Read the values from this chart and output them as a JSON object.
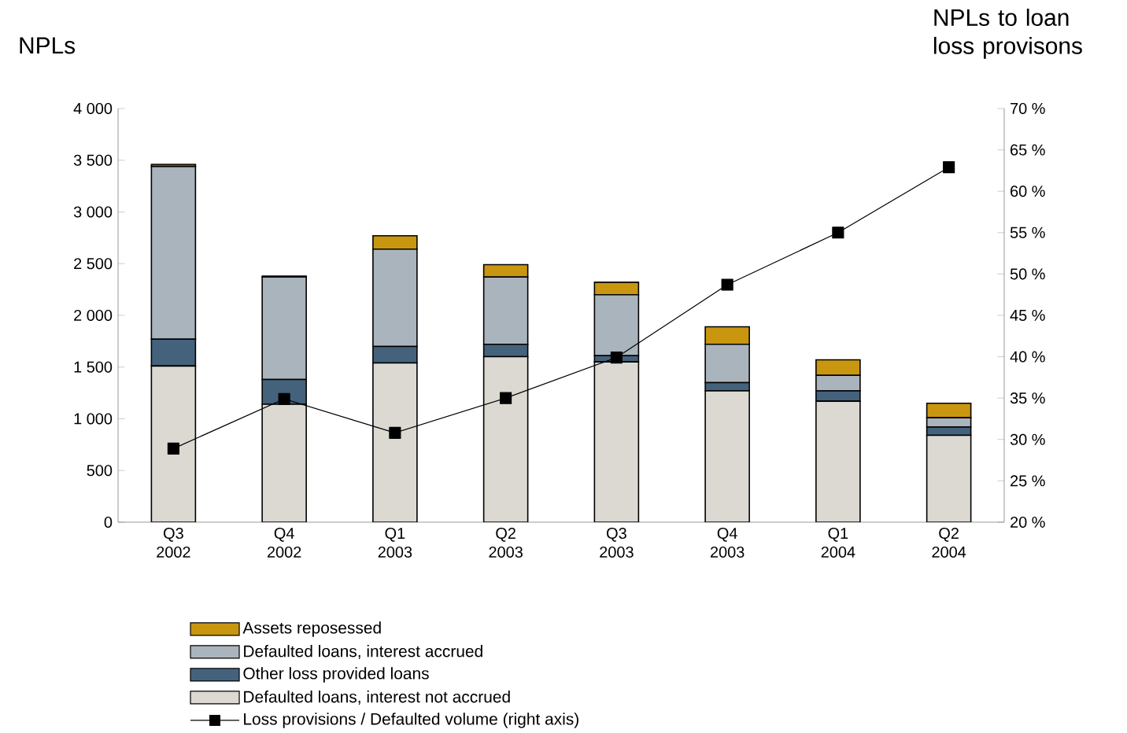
{
  "chart_data": {
    "type": "bar",
    "stacked": true,
    "legend": "bottom",
    "ylabel": "NPLs",
    "y2label": "NPLs to loan loss provisons",
    "categories": [
      "Q3 2002",
      "Q4 2002",
      "Q1 2003",
      "Q2 2003",
      "Q3 2003",
      "Q4 2003",
      "Q1 2004",
      "Q2 2004"
    ],
    "ylim": [
      0,
      4000
    ],
    "yticks": [
      0,
      500,
      {
        "value": 1000,
        "label": "1 000"
      },
      {
        "value": 1500,
        "label": "1 500"
      },
      {
        "value": 2000,
        "label": "2 000"
      },
      {
        "value": 2500,
        "label": "2 500"
      },
      {
        "value": 3000,
        "label": "3 000"
      },
      {
        "value": 3500,
        "label": "3 500"
      },
      {
        "value": 4000,
        "label": "4 000"
      }
    ],
    "y2lim": [
      20,
      70
    ],
    "y2ticks": [
      {
        "value": 20,
        "label": "20 %"
      },
      {
        "value": 25,
        "label": "25 %"
      },
      {
        "value": 30,
        "label": "30 %"
      },
      {
        "value": 35,
        "label": "35 %"
      },
      {
        "value": 40,
        "label": "40 %"
      },
      {
        "value": 45,
        "label": "45 %"
      },
      {
        "value": 50,
        "label": "50 %"
      },
      {
        "value": 55,
        "label": "55 %"
      },
      {
        "value": 60,
        "label": "60 %"
      },
      {
        "value": 65,
        "label": "65 %"
      },
      {
        "value": 70,
        "label": "70 %"
      }
    ],
    "series": [
      {
        "name": "Defaulted loans, interest not accrued",
        "color": "#dcd9d2",
        "values": [
          1510,
          1140,
          1540,
          1600,
          1550,
          1270,
          1170,
          840
        ]
      },
      {
        "name": "Other loss provided loans",
        "color": "#45627c",
        "values": [
          260,
          240,
          160,
          120,
          60,
          80,
          100,
          80
        ]
      },
      {
        "name": "Defaulted loans, interest accrued",
        "color": "#aab4bd",
        "values": [
          1670,
          990,
          940,
          650,
          590,
          370,
          150,
          90
        ]
      },
      {
        "name": "Assets reposessed",
        "color": "#c8960f",
        "values": [
          20,
          10,
          130,
          120,
          120,
          170,
          150,
          140
        ]
      },
      {
        "name": "Loss provisions / Defaulted volume (right axis)",
        "type": "line",
        "axis": "y2",
        "marker": "square",
        "color": "#000000",
        "values": [
          28.9,
          34.9,
          30.8,
          35.0,
          39.9,
          48.7,
          55.0,
          62.9
        ]
      }
    ]
  }
}
